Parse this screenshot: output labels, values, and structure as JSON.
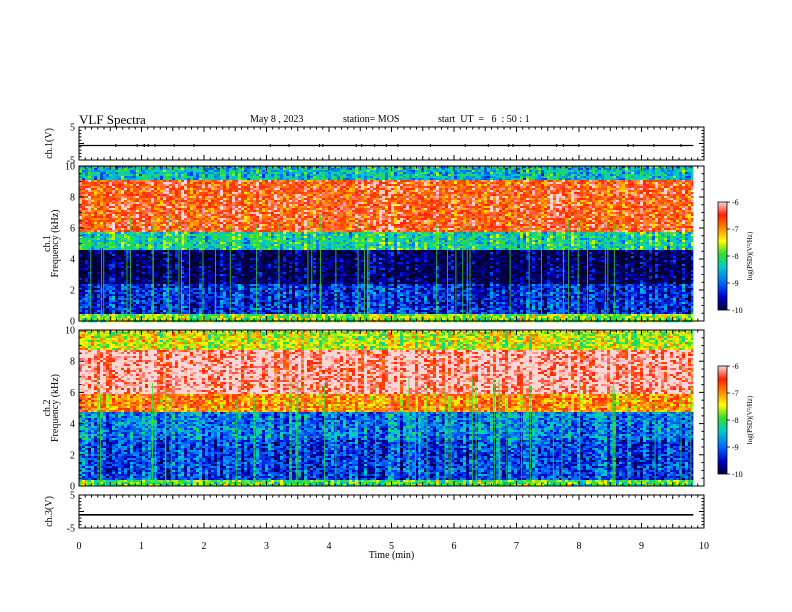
{
  "header": {
    "title": "VLF Spectra",
    "date": "May 8 , 2023",
    "station": "station= MOS",
    "start_ut": "start  UT  =   6  : 50 : 1"
  },
  "colors": {
    "spectrogram_colormap": [
      "#000033",
      "#0000cc",
      "#0066ff",
      "#00cccc",
      "#33dd33",
      "#ffff00",
      "#ff8800",
      "#ff2200",
      "#ffd6d6"
    ]
  },
  "chart_data": [
    {
      "type": "line",
      "panel": "ch1-voltage",
      "ylabel": "ch.1(V)",
      "ylim": [
        -5,
        5
      ],
      "yticks": [
        "5",
        "-5"
      ],
      "series": [
        {
          "x_range": [
            0,
            9.83
          ],
          "y_level": -0.6
        }
      ]
    },
    {
      "type": "heatmap",
      "panel": "ch1-spectrogram",
      "ylabel": "ch.1\nFrequency (kHz)",
      "ylim": [
        0,
        10
      ],
      "yticks": [
        "0",
        "2",
        "4",
        "6",
        "8",
        "10"
      ],
      "x_range_min": [
        0,
        9.83
      ],
      "colorbar": {
        "label": "log(PSD)(V²/Hz)",
        "range": [
          -10,
          -6
        ],
        "ticks": [
          "-6",
          "-7",
          "-8",
          "-9",
          "-10"
        ]
      },
      "bands_log_psd": [
        {
          "f": [
            0,
            0.5
          ],
          "log_psd": -7.8
        },
        {
          "f": [
            0.5,
            2.5
          ],
          "log_psd": -9.3
        },
        {
          "f": [
            2.5,
            4.6
          ],
          "log_psd": -9.9
        },
        {
          "f": [
            4.6,
            5.8
          ],
          "log_psd": -8.3
        },
        {
          "f": [
            5.8,
            9.2
          ],
          "log_psd": -6.6
        },
        {
          "f": [
            9.2,
            10
          ],
          "log_psd": -8.5
        }
      ]
    },
    {
      "type": "heatmap",
      "panel": "ch2-spectrogram",
      "ylabel": "ch.2\nFrequency (kHz)",
      "ylim": [
        0,
        10
      ],
      "yticks": [
        "0",
        "2",
        "4",
        "6",
        "8",
        "10"
      ],
      "x_range_min": [
        0,
        9.83
      ],
      "colorbar": {
        "label": "log(PSD)(V²/Hz)",
        "range": [
          -10,
          -6
        ],
        "ticks": [
          "-6",
          "-7",
          "-8",
          "-9",
          "-10"
        ]
      },
      "bands_log_psd": [
        {
          "f": [
            0,
            0.5
          ],
          "log_psd": -8.0
        },
        {
          "f": [
            0.5,
            3.0
          ],
          "log_psd": -9.2
        },
        {
          "f": [
            3.0,
            4.8
          ],
          "log_psd": -8.9
        },
        {
          "f": [
            4.8,
            6.0
          ],
          "log_psd": -7.0
        },
        {
          "f": [
            6.0,
            8.8
          ],
          "log_psd": -6.1
        },
        {
          "f": [
            8.8,
            10
          ],
          "log_psd": -7.6
        }
      ]
    },
    {
      "type": "line",
      "panel": "ch3-voltage",
      "ylabel": "ch.3(V)",
      "ylim": [
        -5,
        5
      ],
      "yticks": [
        "5",
        "-5"
      ],
      "series": [
        {
          "x_range": [
            0,
            9.83
          ],
          "y_level": -1.0
        }
      ]
    }
  ],
  "x_axis": {
    "label": "Time  (min)",
    "xlim": [
      0,
      10
    ],
    "ticks": [
      "0",
      "1",
      "2",
      "3",
      "4",
      "5",
      "6",
      "7",
      "8",
      "9",
      "10"
    ]
  }
}
